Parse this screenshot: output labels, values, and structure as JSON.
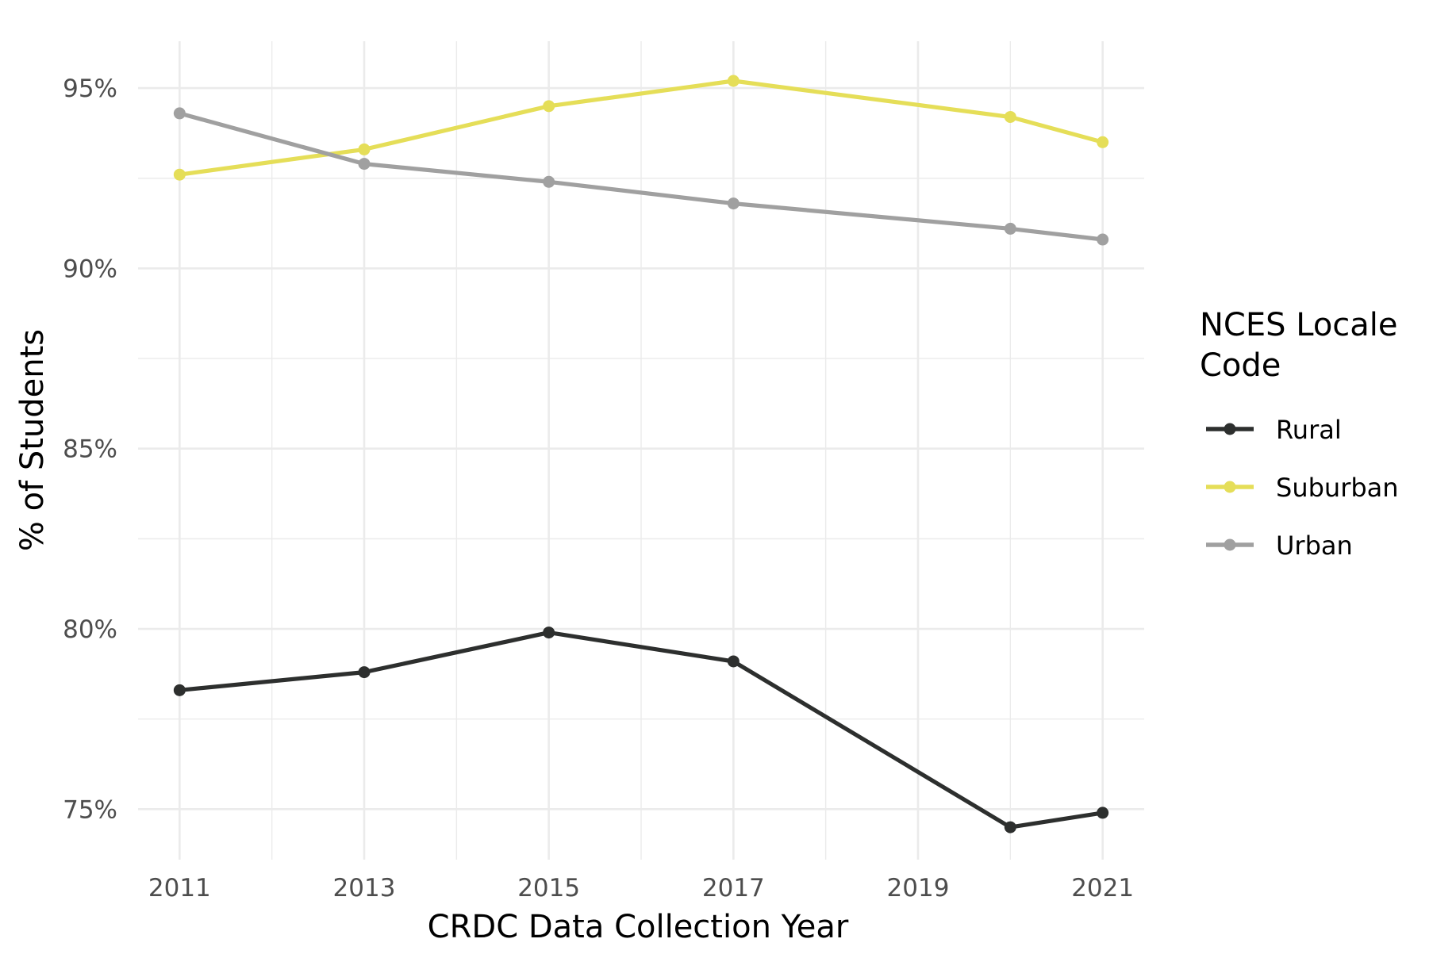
{
  "chart_data": {
    "type": "line",
    "title": "",
    "xlabel": "CRDC Data Collection Year",
    "ylabel": "% of Students",
    "xlim": [
      2010.55,
      2021.45
    ],
    "ylim": [
      73.6,
      96.3
    ],
    "x_ticks": [
      2011,
      2013,
      2015,
      2017,
      2019,
      2021
    ],
    "x_tick_labels": [
      "2011",
      "2013",
      "2015",
      "2017",
      "2019",
      "2021"
    ],
    "x_minor_ticks": [
      2012,
      2014,
      2016,
      2018,
      2020
    ],
    "y_ticks": [
      75,
      80,
      85,
      90,
      95
    ],
    "y_tick_labels": [
      "75%",
      "80%",
      "85%",
      "90%",
      "95%"
    ],
    "y_minor_ticks": [
      77.5,
      82.5,
      87.5,
      92.5
    ],
    "grid": true,
    "legend": {
      "title_lines": [
        "NCES Locale",
        "Code"
      ],
      "position": "right"
    },
    "x": [
      2011,
      2013,
      2015,
      2017,
      2020,
      2021
    ],
    "series": [
      {
        "name": "Rural",
        "color": "#2d2f2e",
        "values": [
          78.3,
          78.8,
          79.9,
          79.1,
          74.5,
          74.9
        ]
      },
      {
        "name": "Suburban",
        "color": "#e5de58",
        "values": [
          92.6,
          93.3,
          94.5,
          95.2,
          94.2,
          93.5
        ]
      },
      {
        "name": "Urban",
        "color": "#a0a0a0",
        "values": [
          94.3,
          92.9,
          92.4,
          91.8,
          91.1,
          90.8
        ]
      }
    ]
  }
}
